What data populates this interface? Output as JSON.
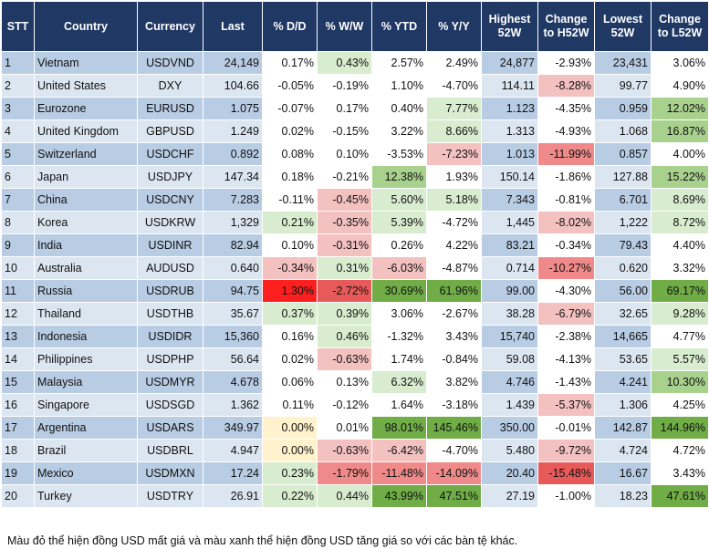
{
  "colors": {
    "header_bg": "#1f3864",
    "row_odd": "#b8cce4",
    "row_even": "#dce6f1",
    "neutral": "#ffffff",
    "zero": "#fff2cc",
    "green_scale": [
      "#d8eccf",
      "#a9d18e",
      "#70ad47",
      "#3fae3a"
    ],
    "red_scale": [
      "#f4c1c1",
      "#f08a8a",
      "#e85a5a",
      "#ff1f1f"
    ]
  },
  "table": {
    "headers": {
      "stt": "STT",
      "country": "Country",
      "currency": "Currency",
      "last": "Last",
      "dd": "% D/D",
      "ww": "% W/W",
      "ytd": "% YTD",
      "yy": "% Y/Y",
      "high": "Highest 52W",
      "chg_high": "Change to H52W",
      "low": "Lowest 52W",
      "chg_low": "Change to L52W"
    },
    "rows": [
      {
        "stt": "1",
        "country": "Vietnam",
        "currency": "USDVND",
        "last": "24,149",
        "dd": "0.17%",
        "ww": "0.43%",
        "ytd": "2.57%",
        "yy": "2.49%",
        "high": "24,877",
        "chg_high": "-2.93%",
        "low": "23,431",
        "chg_low": "3.06%"
      },
      {
        "stt": "2",
        "country": "United States",
        "currency": "DXY",
        "last": "104.66",
        "dd": "-0.05%",
        "ww": "-0.19%",
        "ytd": "1.10%",
        "yy": "-4.70%",
        "high": "114.11",
        "chg_high": "-8.28%",
        "low": "99.77",
        "chg_low": "4.90%"
      },
      {
        "stt": "3",
        "country": "Eurozone",
        "currency": "EURUSD",
        "last": "1.075",
        "dd": "-0.07%",
        "ww": "0.17%",
        "ytd": "0.40%",
        "yy": "7.77%",
        "high": "1.123",
        "chg_high": "-4.35%",
        "low": "0.959",
        "chg_low": "12.02%"
      },
      {
        "stt": "4",
        "country": "United Kingdom",
        "currency": "GBPUSD",
        "last": "1.249",
        "dd": "0.02%",
        "ww": "-0.15%",
        "ytd": "3.22%",
        "yy": "8.66%",
        "high": "1.313",
        "chg_high": "-4.93%",
        "low": "1.068",
        "chg_low": "16.87%"
      },
      {
        "stt": "5",
        "country": "Switzerland",
        "currency": "USDCHF",
        "last": "0.892",
        "dd": "0.08%",
        "ww": "0.10%",
        "ytd": "-3.53%",
        "yy": "-7.23%",
        "high": "1.013",
        "chg_high": "-11.99%",
        "low": "0.857",
        "chg_low": "4.00%"
      },
      {
        "stt": "6",
        "country": "Japan",
        "currency": "USDJPY",
        "last": "147.34",
        "dd": "0.18%",
        "ww": "-0.21%",
        "ytd": "12.38%",
        "yy": "1.93%",
        "high": "150.14",
        "chg_high": "-1.86%",
        "low": "127.88",
        "chg_low": "15.22%"
      },
      {
        "stt": "7",
        "country": "China",
        "currency": "USDCNY",
        "last": "7.283",
        "dd": "-0.11%",
        "ww": "-0.45%",
        "ytd": "5.60%",
        "yy": "5.18%",
        "high": "7.343",
        "chg_high": "-0.81%",
        "low": "6.701",
        "chg_low": "8.69%"
      },
      {
        "stt": "8",
        "country": "Korea",
        "currency": "USDKRW",
        "last": "1,329",
        "dd": "0.21%",
        "ww": "-0.35%",
        "ytd": "5.39%",
        "yy": "-4.72%",
        "high": "1,445",
        "chg_high": "-8.02%",
        "low": "1,222",
        "chg_low": "8.72%"
      },
      {
        "stt": "9",
        "country": "India",
        "currency": "USDINR",
        "last": "82.94",
        "dd": "0.10%",
        "ww": "-0.31%",
        "ytd": "0.26%",
        "yy": "4.22%",
        "high": "83.21",
        "chg_high": "-0.34%",
        "low": "79.43",
        "chg_low": "4.40%"
      },
      {
        "stt": "10",
        "country": "Australia",
        "currency": "AUDUSD",
        "last": "0.640",
        "dd": "-0.34%",
        "ww": "0.31%",
        "ytd": "-6.03%",
        "yy": "-4.87%",
        "high": "0.714",
        "chg_high": "-10.27%",
        "low": "0.620",
        "chg_low": "3.32%"
      },
      {
        "stt": "11",
        "country": "Russia",
        "currency": "USDRUB",
        "last": "94.75",
        "dd": "1.30%",
        "ww": "-2.72%",
        "ytd": "30.69%",
        "yy": "61.96%",
        "high": "99.00",
        "chg_high": "-4.30%",
        "low": "56.00",
        "chg_low": "69.17%"
      },
      {
        "stt": "12",
        "country": "Thailand",
        "currency": "USDTHB",
        "last": "35.67",
        "dd": "0.37%",
        "ww": "0.39%",
        "ytd": "3.06%",
        "yy": "-2.67%",
        "high": "38.28",
        "chg_high": "-6.79%",
        "low": "32.65",
        "chg_low": "9.28%"
      },
      {
        "stt": "13",
        "country": "Indonesia",
        "currency": "USDIDR",
        "last": "15,360",
        "dd": "0.16%",
        "ww": "0.46%",
        "ytd": "-1.32%",
        "yy": "3.43%",
        "high": "15,740",
        "chg_high": "-2.38%",
        "low": "14,665",
        "chg_low": "4.77%"
      },
      {
        "stt": "14",
        "country": "Philippines",
        "currency": "USDPHP",
        "last": "56.64",
        "dd": "0.02%",
        "ww": "-0.63%",
        "ytd": "1.74%",
        "yy": "-0.84%",
        "high": "59.08",
        "chg_high": "-4.13%",
        "low": "53.65",
        "chg_low": "5.57%"
      },
      {
        "stt": "15",
        "country": "Malaysia",
        "currency": "USDMYR",
        "last": "4.678",
        "dd": "0.06%",
        "ww": "0.13%",
        "ytd": "6.32%",
        "yy": "3.82%",
        "high": "4.746",
        "chg_high": "-1.43%",
        "low": "4.241",
        "chg_low": "10.30%"
      },
      {
        "stt": "16",
        "country": "Singapore",
        "currency": "USDSGD",
        "last": "1.362",
        "dd": "0.11%",
        "ww": "-0.12%",
        "ytd": "1.64%",
        "yy": "-3.18%",
        "high": "1.439",
        "chg_high": "-5.37%",
        "low": "1.306",
        "chg_low": "4.25%"
      },
      {
        "stt": "17",
        "country": "Argentina",
        "currency": "USDARS",
        "last": "349.97",
        "dd": "0.00%",
        "ww": "0.01%",
        "ytd": "98.01%",
        "yy": "145.46%",
        "high": "350.00",
        "chg_high": "-0.01%",
        "low": "142.87",
        "chg_low": "144.96%"
      },
      {
        "stt": "18",
        "country": "Brazil",
        "currency": "USDBRL",
        "last": "4.947",
        "dd": "0.00%",
        "ww": "-0.63%",
        "ytd": "-6.42%",
        "yy": "-4.70%",
        "high": "5.480",
        "chg_high": "-9.72%",
        "low": "4.724",
        "chg_low": "4.72%"
      },
      {
        "stt": "19",
        "country": "Mexico",
        "currency": "USDMXN",
        "last": "17.24",
        "dd": "0.23%",
        "ww": "-1.79%",
        "ytd": "-11.48%",
        "yy": "-14.09%",
        "high": "20.40",
        "chg_high": "-15.48%",
        "low": "16.67",
        "chg_low": "3.43%"
      },
      {
        "stt": "20",
        "country": "Turkey",
        "currency": "USDTRY",
        "last": "26.91",
        "dd": "0.22%",
        "ww": "0.44%",
        "ytd": "43.99%",
        "yy": "47.51%",
        "high": "27.19",
        "chg_high": "-1.00%",
        "low": "18.23",
        "chg_low": "47.61%"
      }
    ]
  },
  "footnote": "Màu đỏ thể hiện đồng USD mất giá và màu xanh thể hiện đồng USD tăng giá so với các bàn tệ khác."
}
